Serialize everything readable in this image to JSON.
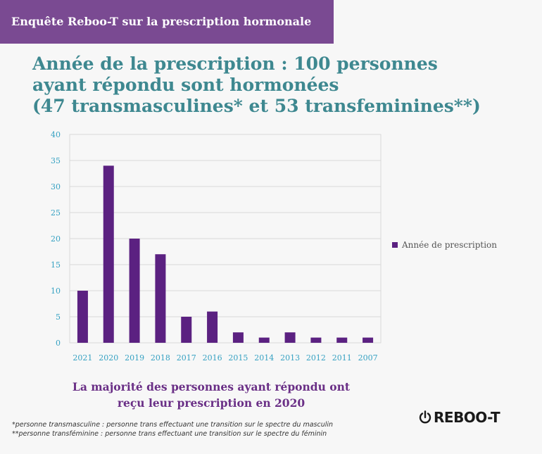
{
  "banner": {
    "text": "Enquête Reboo-T sur la prescription hormonale"
  },
  "title": {
    "line1": "Année de la prescription : 100 personnes",
    "line2": "ayant répondu sont hormonées",
    "line3": "(47 transmasculines* et 53 transfeminines**)"
  },
  "subtitle": {
    "line1": "La majorité des personnes ayant répondu ont",
    "line2": "reçu leur prescription en 2020"
  },
  "footnotes": {
    "line1": "*personne transmasculine : personne trans effectuant une transition sur le spectre du masculin",
    "line2": "**personne transféminine : personne trans effectuant une transition sur le spectre du féminin"
  },
  "logo": {
    "text": "REBOO-T",
    "icon": "power-icon"
  },
  "colors": {
    "banner": "#7a4a92",
    "title": "#3e8890",
    "bar": "#5b2181",
    "axis_text": "#35a1c2",
    "subtitle": "#6a2f86"
  },
  "chart_data": {
    "type": "bar",
    "categories": [
      "2021",
      "2020",
      "2019",
      "2018",
      "2017",
      "2016",
      "2015",
      "2014",
      "2013",
      "2012",
      "2011",
      "2007"
    ],
    "series": [
      {
        "name": "Année de prescription",
        "values": [
          10,
          34,
          20,
          17,
          5,
          6,
          2,
          1,
          2,
          1,
          1,
          1
        ]
      }
    ],
    "ylim": [
      0,
      40
    ],
    "yticks": [
      0,
      5,
      10,
      15,
      20,
      25,
      30,
      35,
      40
    ],
    "grid": true,
    "legend": "right",
    "xlabel": "",
    "ylabel": ""
  }
}
